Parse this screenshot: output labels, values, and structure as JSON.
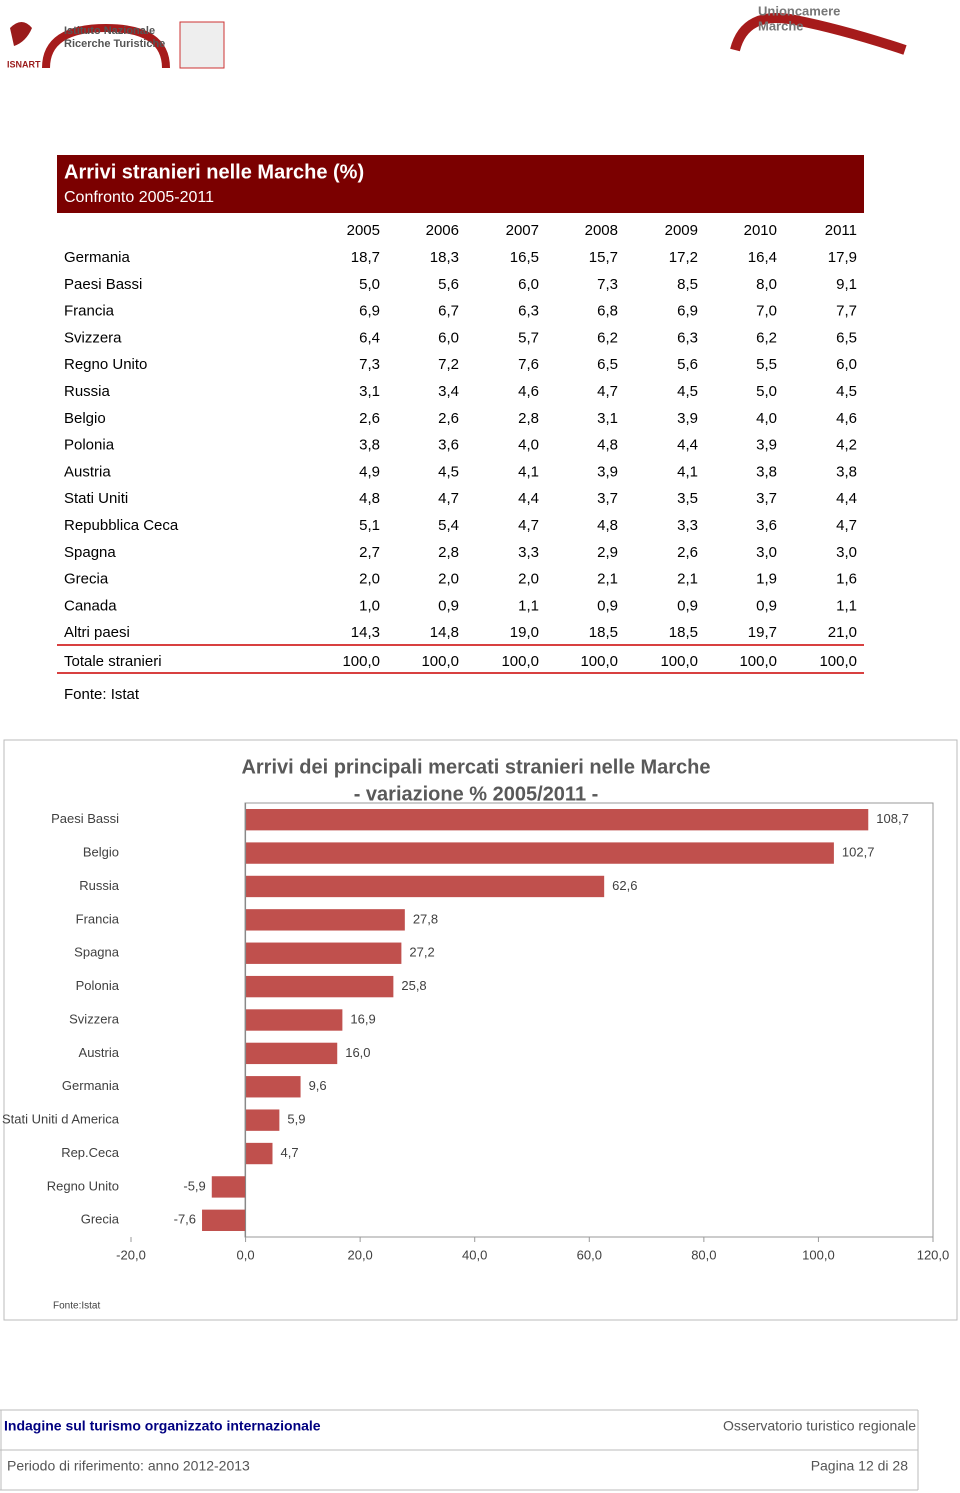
{
  "header": {
    "isnart_lines": [
      "Istituto Nazionale",
      "Ricerche Turistiche"
    ],
    "isnart_acronym": "ISNART",
    "unioncamere_lines": [
      "Unioncamere",
      "Marche"
    ]
  },
  "table": {
    "title": "Arrivi stranieri nelle Marche (%)",
    "subtitle": "Confronto 2005-2011",
    "columns": [
      "2005",
      "2006",
      "2007",
      "2008",
      "2009",
      "2010",
      "2011"
    ],
    "rows": [
      [
        "Germania",
        "18,7",
        "18,3",
        "16,5",
        "15,7",
        "17,2",
        "16,4",
        "17,9"
      ],
      [
        "Paesi Bassi",
        "5,0",
        "5,6",
        "6,0",
        "7,3",
        "8,5",
        "8,0",
        "9,1"
      ],
      [
        "Francia",
        "6,9",
        "6,7",
        "6,3",
        "6,8",
        "6,9",
        "7,0",
        "7,7"
      ],
      [
        "Svizzera",
        "6,4",
        "6,0",
        "5,7",
        "6,2",
        "6,3",
        "6,2",
        "6,5"
      ],
      [
        "Regno Unito",
        "7,3",
        "7,2",
        "7,6",
        "6,5",
        "5,6",
        "5,5",
        "6,0"
      ],
      [
        "Russia",
        "3,1",
        "3,4",
        "4,6",
        "4,7",
        "4,5",
        "5,0",
        "4,5"
      ],
      [
        "Belgio",
        "2,6",
        "2,6",
        "2,8",
        "3,1",
        "3,9",
        "4,0",
        "4,6"
      ],
      [
        "Polonia",
        "3,8",
        "3,6",
        "4,0",
        "4,8",
        "4,4",
        "3,9",
        "4,2"
      ],
      [
        "Austria",
        "4,9",
        "4,5",
        "4,1",
        "3,9",
        "4,1",
        "3,8",
        "3,8"
      ],
      [
        "Stati Uniti",
        "4,8",
        "4,7",
        "4,4",
        "3,7",
        "3,5",
        "3,7",
        "4,4"
      ],
      [
        "Repubblica Ceca",
        "5,1",
        "5,4",
        "4,7",
        "4,8",
        "3,3",
        "3,6",
        "4,7"
      ],
      [
        "Spagna",
        "2,7",
        "2,8",
        "3,3",
        "2,9",
        "2,6",
        "3,0",
        "3,0"
      ],
      [
        "Grecia",
        "2,0",
        "2,0",
        "2,0",
        "2,1",
        "2,1",
        "1,9",
        "1,6"
      ],
      [
        "Canada",
        "1,0",
        "0,9",
        "1,1",
        "0,9",
        "0,9",
        "0,9",
        "1,1"
      ],
      [
        "Altri paesi",
        "14,3",
        "14,8",
        "19,0",
        "18,5",
        "18,5",
        "19,7",
        "21,0"
      ]
    ],
    "total": [
      "Totale stranieri",
      "100,0",
      "100,0",
      "100,0",
      "100,0",
      "100,0",
      "100,0",
      "100,0"
    ],
    "source": "Fonte: Istat"
  },
  "chart_data": {
    "type": "hbar",
    "title": "Arrivi dei principali mercati stranieri nelle Marche",
    "subtitle": "- variazione % 2005/2011 -",
    "categories": [
      "Paesi Bassi",
      "Belgio",
      "Russia",
      "Francia",
      "Spagna",
      "Polonia",
      "Svizzera",
      "Austria",
      "Germania",
      "Stati Uniti d America",
      "Rep.Ceca",
      "Regno Unito",
      "Grecia"
    ],
    "values": [
      108.7,
      102.7,
      62.6,
      27.8,
      27.2,
      25.8,
      16.9,
      16.0,
      9.6,
      5.9,
      4.7,
      -5.9,
      -7.6
    ],
    "value_labels": [
      "108,7",
      "102,7",
      "62,6",
      "27,8",
      "27,2",
      "25,8",
      "16,9",
      "16,0",
      "9,6",
      "5,9",
      "4,7",
      "-5,9",
      "-7,6"
    ],
    "color": "#c0504d",
    "xlim": [
      -20,
      120
    ],
    "xticks": [
      {
        "value": -20,
        "label": "-20,0"
      },
      {
        "value": 0,
        "label": "0,0"
      },
      {
        "value": 20,
        "label": "20,0"
      },
      {
        "value": 40,
        "label": "40,0"
      },
      {
        "value": 60,
        "label": "60,0"
      },
      {
        "value": 80,
        "label": "80,0"
      },
      {
        "value": 100,
        "label": "100,0"
      },
      {
        "value": 120,
        "label": "120,0"
      }
    ],
    "grid": false,
    "source": "Fonte:Istat"
  },
  "footer": {
    "left_top": "Indagine sul turismo organizzato internazionale",
    "right_top": "Osservatorio turistico regionale",
    "left_bottom": "Periodo di riferimento: anno 2012-2013",
    "right_bottom": "Pagina 12 di 28"
  }
}
